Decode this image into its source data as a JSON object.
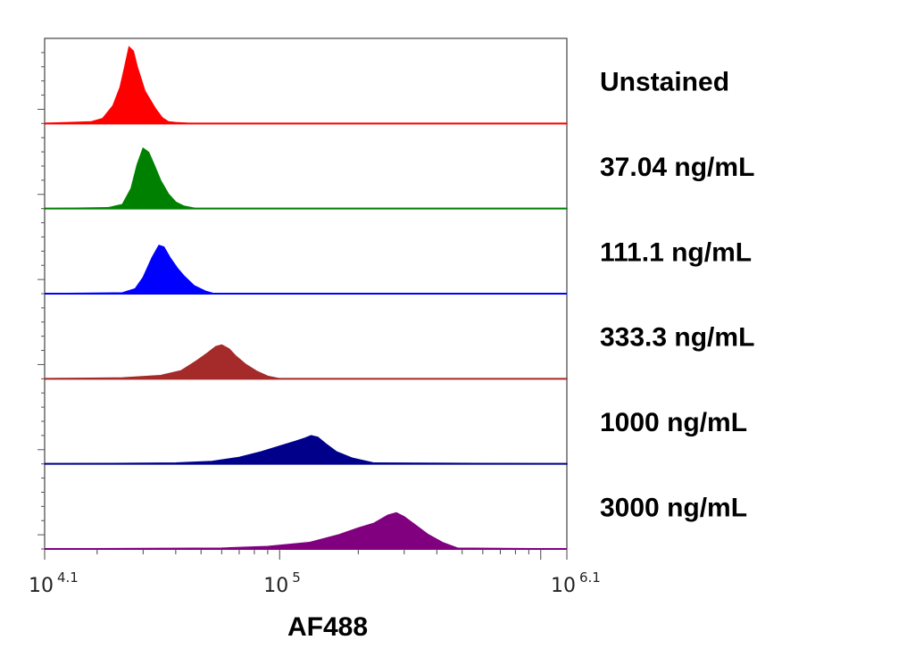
{
  "chart_data": {
    "type": "area",
    "xlabel": "AF488",
    "xscale": "log10",
    "xlim": [
      12589,
      1258925
    ],
    "x_ticks": [
      {
        "base": "10",
        "exp": "4.1",
        "value": 12589
      },
      {
        "base": "10",
        "exp": "5",
        "value": 100000
      },
      {
        "base": "10",
        "exp": "6.1",
        "value": 1258925
      }
    ],
    "legend_placement": "right",
    "series": [
      {
        "name": "Unstained",
        "color": "#ff0000",
        "x": [
          12589,
          19000,
          21000,
          23000,
          24500,
          25500,
          26500,
          27500,
          28500,
          30500,
          33500,
          35500,
          37500,
          40000,
          45000,
          1258925
        ],
        "y": [
          0,
          0.02,
          0.06,
          0.22,
          0.45,
          0.7,
          0.95,
          0.9,
          0.7,
          0.4,
          0.18,
          0.07,
          0.02,
          0.01,
          0,
          0
        ]
      },
      {
        "name": "37.04 ng/mL",
        "color": "#008000",
        "x": [
          12589,
          22000,
          25000,
          27000,
          28500,
          30000,
          31500,
          33000,
          35000,
          37500,
          40000,
          43000,
          48000,
          1258925
        ],
        "y": [
          0,
          0.01,
          0.05,
          0.25,
          0.55,
          0.75,
          0.7,
          0.55,
          0.35,
          0.18,
          0.08,
          0.03,
          0,
          0
        ]
      },
      {
        "name": "111.1 ng/mL",
        "color": "#0000ff",
        "x": [
          12589,
          25000,
          28000,
          30000,
          32500,
          34500,
          36000,
          38000,
          40500,
          43000,
          47000,
          52000,
          56000,
          1258925
        ],
        "y": [
          0,
          0.01,
          0.06,
          0.2,
          0.45,
          0.6,
          0.58,
          0.45,
          0.32,
          0.22,
          0.1,
          0.03,
          0,
          0
        ]
      },
      {
        "name": "333.3 ng/mL",
        "color": "#a52a2a",
        "x": [
          12589,
          25000,
          35000,
          42000,
          48000,
          53000,
          57000,
          60000,
          64000,
          68000,
          74000,
          82000,
          90000,
          100000,
          1258925
        ],
        "y": [
          0,
          0.01,
          0.04,
          0.1,
          0.22,
          0.32,
          0.4,
          0.42,
          0.37,
          0.28,
          0.18,
          0.09,
          0.03,
          0,
          0
        ]
      },
      {
        "name": "1000 ng/mL",
        "color": "#00008b",
        "x": [
          12589,
          40000,
          55000,
          70000,
          85000,
          100000,
          115000,
          125000,
          132000,
          140000,
          150000,
          165000,
          190000,
          230000,
          1258925
        ],
        "y": [
          0,
          0.01,
          0.03,
          0.08,
          0.15,
          0.22,
          0.28,
          0.32,
          0.35,
          0.33,
          0.25,
          0.15,
          0.07,
          0.01,
          0
        ]
      },
      {
        "name": "3000 ng/mL",
        "color": "#800080",
        "x": [
          12589,
          60000,
          90000,
          130000,
          170000,
          200000,
          230000,
          260000,
          280000,
          300000,
          330000,
          370000,
          420000,
          480000,
          1258925
        ],
        "y": [
          0,
          0.01,
          0.03,
          0.08,
          0.18,
          0.26,
          0.32,
          0.42,
          0.45,
          0.4,
          0.3,
          0.18,
          0.08,
          0.01,
          0
        ]
      }
    ]
  }
}
